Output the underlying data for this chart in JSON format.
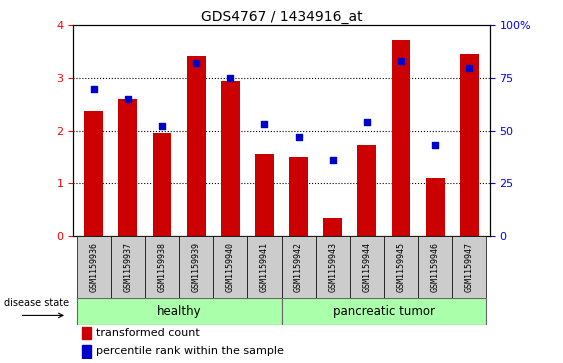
{
  "title": "GDS4767 / 1434916_at",
  "samples": [
    "GSM1159936",
    "GSM1159937",
    "GSM1159938",
    "GSM1159939",
    "GSM1159940",
    "GSM1159941",
    "GSM1159942",
    "GSM1159943",
    "GSM1159944",
    "GSM1159945",
    "GSM1159946",
    "GSM1159947"
  ],
  "transformed_count": [
    2.38,
    2.6,
    1.95,
    3.42,
    2.95,
    1.55,
    1.5,
    0.35,
    1.73,
    3.73,
    1.1,
    3.45
  ],
  "percentile_rank": [
    70,
    65,
    52,
    82,
    75,
    53,
    47,
    36,
    54,
    83,
    43,
    80
  ],
  "healthy_color": "#aaffaa",
  "tumor_color": "#aaffaa",
  "bar_color": "#CC0000",
  "dot_color": "#0000CC",
  "ylim_left": [
    0,
    4
  ],
  "ylim_right": [
    0,
    100
  ],
  "yticks_left": [
    0,
    1,
    2,
    3,
    4
  ],
  "yticks_right": [
    0,
    25,
    50,
    75,
    100
  ],
  "tick_area_color": "#cccccc",
  "healthy_split": 6
}
